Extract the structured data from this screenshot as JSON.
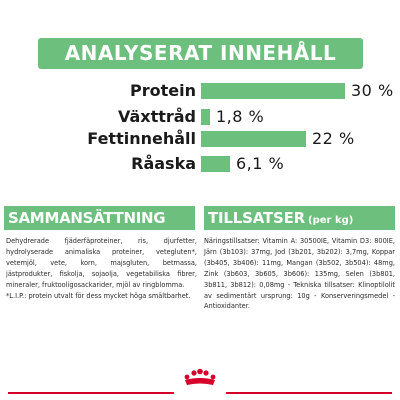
{
  "header": {
    "title": "ANALYSERAT INNEHÅLL"
  },
  "analysis": [
    {
      "label": "Protein",
      "value": "30 %",
      "fraction": 1.0
    },
    {
      "label": "Växttråd",
      "value": "1,8 %",
      "fraction": 0.06
    },
    {
      "label": "Fettinnehåll",
      "value": "22 %",
      "fraction": 0.73
    },
    {
      "label": "Råaska",
      "value": "6,1 %",
      "fraction": 0.2
    }
  ],
  "composition": {
    "title": "SAMMANSÄTTNING",
    "text": "Dehydrerade fjäderfäproteiner, ris, djurfetter, hydrolyserade animaliska proteiner, vetegluten*, vetemjöl, vete, korn, majsgluten, betmassa, jästprodukter, fiskolja, sojaolja, vegetabiliska fibrer, mineraler, fruktooligosackarider, mjöl av ringblomma.",
    "footnote": "*L.I.P.: protein utvalt för dess mycket höga smältbarhet."
  },
  "additives": {
    "title": "TILLSATSER",
    "title_suffix": "(per kg)",
    "text": "Näringstillsatser: Vitamin A: 30500IE, Vitamin D3: 800IE, Järn (3b103): 37mg, Jod (3b201, 3b202): 3,7mg, Koppar (3b405, 3b406): 11mg, Mangan (3b502, 3b504): 48mg, Zink (3b603, 3b605, 3b606): 135mg, Selen (3b801, 3b811, 3b812): 0,08mg - Tekniska tillsatser: Klinoptilolit av sedimentärt ursprung: 10g - Konserveringsmedel - Antioxidanter."
  },
  "logo": {
    "icon": "royal-canin-crown-icon"
  },
  "colors": {
    "accent": "#6dbf7e",
    "brand_red": "#d6002a",
    "text": "#1a1a1a"
  }
}
